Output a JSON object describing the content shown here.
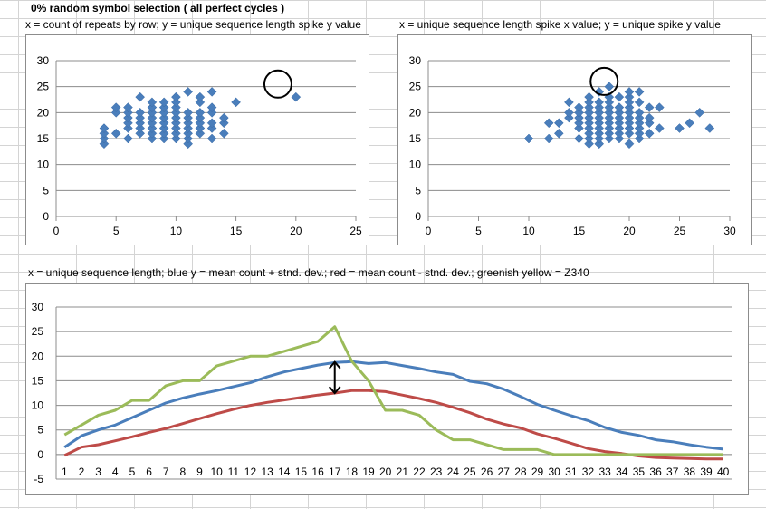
{
  "sheet": {
    "title": "0%   random symbol selection ( all perfect cycles )",
    "caption1": "x = count of repeats by row; y = unique sequence length spike y value",
    "caption2": "x = unique sequence length spike x value; y = unique spike y value",
    "caption3": "x = unique sequence length; blue y = mean count + stnd. dev.; red = mean count - stnd. dev.; greenish yellow = Z340"
  },
  "chart_data": [
    {
      "type": "scatter",
      "title": "",
      "xlim": [
        0,
        25
      ],
      "ylim": [
        0,
        30
      ],
      "xticks": [
        0,
        5,
        10,
        15,
        20,
        25
      ],
      "yticks": [
        0,
        5,
        10,
        15,
        20,
        25,
        30
      ],
      "grid": "horizontal",
      "marker_color": "#4a7ebb",
      "annotation": {
        "type": "circle",
        "x": 18.5,
        "y": 25.5,
        "color": "#000000"
      },
      "points": [
        [
          4,
          14
        ],
        [
          4,
          15
        ],
        [
          4,
          16
        ],
        [
          4,
          17
        ],
        [
          5,
          16
        ],
        [
          5,
          20
        ],
        [
          5,
          21
        ],
        [
          6,
          15
        ],
        [
          6,
          17
        ],
        [
          6,
          18
        ],
        [
          6,
          19
        ],
        [
          6,
          20
        ],
        [
          6,
          21
        ],
        [
          7,
          16
        ],
        [
          7,
          17
        ],
        [
          7,
          18
        ],
        [
          7,
          19
        ],
        [
          7,
          20
        ],
        [
          7,
          23
        ],
        [
          8,
          15
        ],
        [
          8,
          16
        ],
        [
          8,
          17
        ],
        [
          8,
          18
        ],
        [
          8,
          19
        ],
        [
          8,
          20
        ],
        [
          8,
          21
        ],
        [
          8,
          22
        ],
        [
          9,
          15
        ],
        [
          9,
          16
        ],
        [
          9,
          17
        ],
        [
          9,
          18
        ],
        [
          9,
          19
        ],
        [
          9,
          20
        ],
        [
          9,
          21
        ],
        [
          9,
          22
        ],
        [
          10,
          15
        ],
        [
          10,
          16
        ],
        [
          10,
          17
        ],
        [
          10,
          18
        ],
        [
          10,
          19
        ],
        [
          10,
          20
        ],
        [
          10,
          21
        ],
        [
          10,
          22
        ],
        [
          10,
          23
        ],
        [
          11,
          14
        ],
        [
          11,
          15
        ],
        [
          11,
          16
        ],
        [
          11,
          17
        ],
        [
          11,
          18
        ],
        [
          11,
          19
        ],
        [
          11,
          20
        ],
        [
          11,
          24
        ],
        [
          12,
          16
        ],
        [
          12,
          17
        ],
        [
          12,
          18
        ],
        [
          12,
          19
        ],
        [
          12,
          20
        ],
        [
          12,
          22
        ],
        [
          12,
          23
        ],
        [
          13,
          15
        ],
        [
          13,
          17
        ],
        [
          13,
          18
        ],
        [
          13,
          20
        ],
        [
          13,
          21
        ],
        [
          13,
          24
        ],
        [
          14,
          16
        ],
        [
          14,
          18
        ],
        [
          14,
          19
        ],
        [
          15,
          22
        ],
        [
          20,
          23
        ]
      ]
    },
    {
      "type": "scatter",
      "title": "",
      "xlim": [
        0,
        30
      ],
      "ylim": [
        0,
        30
      ],
      "xticks": [
        0,
        5,
        10,
        15,
        20,
        25,
        30
      ],
      "yticks": [
        0,
        5,
        10,
        15,
        20,
        25,
        30
      ],
      "grid": "horizontal",
      "marker_color": "#4a7ebb",
      "annotation": {
        "type": "circle",
        "x": 17.5,
        "y": 26,
        "color": "#000000"
      },
      "points": [
        [
          10,
          15
        ],
        [
          12,
          15
        ],
        [
          12,
          18
        ],
        [
          13,
          16
        ],
        [
          13,
          18
        ],
        [
          14,
          19
        ],
        [
          14,
          20
        ],
        [
          14,
          22
        ],
        [
          15,
          15
        ],
        [
          15,
          17
        ],
        [
          15,
          18
        ],
        [
          15,
          19
        ],
        [
          15,
          20
        ],
        [
          15,
          21
        ],
        [
          16,
          14
        ],
        [
          16,
          15
        ],
        [
          16,
          16
        ],
        [
          16,
          17
        ],
        [
          16,
          18
        ],
        [
          16,
          19
        ],
        [
          16,
          20
        ],
        [
          16,
          21
        ],
        [
          16,
          22
        ],
        [
          16,
          23
        ],
        [
          17,
          14
        ],
        [
          17,
          15
        ],
        [
          17,
          16
        ],
        [
          17,
          17
        ],
        [
          17,
          18
        ],
        [
          17,
          19
        ],
        [
          17,
          20
        ],
        [
          17,
          21
        ],
        [
          17,
          22
        ],
        [
          17,
          24
        ],
        [
          18,
          15
        ],
        [
          18,
          16
        ],
        [
          18,
          17
        ],
        [
          18,
          18
        ],
        [
          18,
          19
        ],
        [
          18,
          20
        ],
        [
          18,
          21
        ],
        [
          18,
          22
        ],
        [
          18,
          23
        ],
        [
          18,
          25
        ],
        [
          19,
          15
        ],
        [
          19,
          16
        ],
        [
          19,
          17
        ],
        [
          19,
          18
        ],
        [
          19,
          19
        ],
        [
          19,
          20
        ],
        [
          19,
          21
        ],
        [
          19,
          23
        ],
        [
          20,
          14
        ],
        [
          20,
          16
        ],
        [
          20,
          17
        ],
        [
          20,
          18
        ],
        [
          20,
          19
        ],
        [
          20,
          20
        ],
        [
          20,
          21
        ],
        [
          20,
          22
        ],
        [
          20,
          23
        ],
        [
          20,
          24
        ],
        [
          21,
          15
        ],
        [
          21,
          16
        ],
        [
          21,
          17
        ],
        [
          21,
          18
        ],
        [
          21,
          19
        ],
        [
          21,
          20
        ],
        [
          21,
          22
        ],
        [
          21,
          24
        ],
        [
          22,
          16
        ],
        [
          22,
          18
        ],
        [
          22,
          19
        ],
        [
          22,
          21
        ],
        [
          23,
          17
        ],
        [
          23,
          21
        ],
        [
          25,
          17
        ],
        [
          26,
          18
        ],
        [
          27,
          20
        ],
        [
          28,
          17
        ]
      ]
    },
    {
      "type": "line",
      "title": "",
      "x": [
        1,
        2,
        3,
        4,
        5,
        6,
        7,
        8,
        9,
        10,
        11,
        12,
        13,
        14,
        15,
        16,
        17,
        18,
        19,
        20,
        21,
        22,
        23,
        24,
        25,
        26,
        27,
        28,
        29,
        30,
        31,
        32,
        33,
        34,
        35,
        36,
        37,
        38,
        39,
        40
      ],
      "ylim": [
        -5,
        30
      ],
      "yticks": [
        -5,
        0,
        5,
        10,
        15,
        20,
        25,
        30
      ],
      "grid": "horizontal",
      "series": [
        {
          "color": "#4a7ebb",
          "values": [
            1.5,
            3.8,
            5,
            6,
            7.5,
            9,
            10.5,
            11.5,
            12.3,
            13,
            13.8,
            14.6,
            15.8,
            16.8,
            17.5,
            18.2,
            18.7,
            18.9,
            18.5,
            18.7,
            18.1,
            17.5,
            16.8,
            16.3,
            14.9,
            14.4,
            13.3,
            11.8,
            10.2,
            9,
            7.9,
            6.9,
            5.5,
            4.5,
            3.9,
            3,
            2.6,
            2,
            1.5,
            1.1
          ]
        },
        {
          "color": "#be4b48",
          "values": [
            -0.2,
            1.5,
            2,
            2.8,
            3.6,
            4.5,
            5.3,
            6.3,
            7.3,
            8.3,
            9.2,
            10,
            10.6,
            11.1,
            11.6,
            12.1,
            12.5,
            13,
            13,
            12.8,
            12.1,
            11.4,
            10.6,
            9.6,
            8.5,
            7.2,
            6.2,
            5.4,
            4.2,
            3.3,
            2.3,
            1.2,
            0.6,
            0.2,
            -0.3,
            -0.6,
            -0.7,
            -0.8,
            -0.9,
            -0.9
          ]
        },
        {
          "color": "#9bbb59",
          "values": [
            4,
            6,
            8,
            9,
            11,
            11,
            14,
            15,
            15,
            18,
            19,
            20,
            20,
            21,
            22,
            23,
            26,
            19,
            15,
            9,
            9,
            8,
            5,
            3,
            3,
            2,
            1,
            1,
            1,
            0,
            0,
            0,
            0,
            0,
            0,
            0,
            0,
            0,
            0,
            0
          ]
        }
      ],
      "annotation": {
        "type": "double-arrow",
        "x": 17.0,
        "y_from": 19.0,
        "y_to": 12.3,
        "color": "#000000"
      }
    }
  ]
}
